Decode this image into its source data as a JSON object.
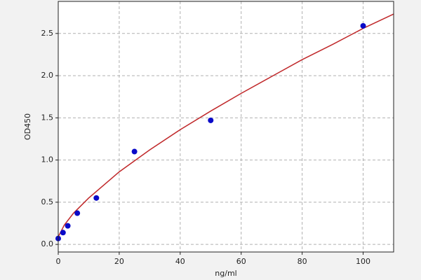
{
  "chart_data": {
    "type": "scatter",
    "x_label": "ng/ml",
    "y_label": "OD450",
    "xlim": [
      0,
      110
    ],
    "ylim": [
      -0.09,
      2.88
    ],
    "xticks": [
      0,
      20,
      40,
      60,
      80,
      100
    ],
    "yticks": [
      {
        "value": 0,
        "label": "0.0"
      },
      0.5,
      {
        "value": 1,
        "label": "1.0"
      },
      1.5,
      {
        "value": 2,
        "label": "2.0"
      },
      2.5
    ],
    "grid": true,
    "series": [
      {
        "type": "line",
        "color": "#c0282a",
        "x": [
          0,
          2,
          5,
          10,
          20,
          30,
          40,
          50,
          60,
          70,
          80,
          90,
          100,
          110
        ],
        "values": [
          0.09,
          0.23,
          0.37,
          0.55,
          0.86,
          1.12,
          1.36,
          1.58,
          1.79,
          1.99,
          2.19,
          2.37,
          2.56,
          2.73
        ]
      },
      {
        "type": "scatter",
        "color": "#0a0ac8",
        "x": [
          0,
          1.5625,
          3.125,
          6.25,
          12.5,
          25,
          50,
          100
        ],
        "values": [
          0.07,
          0.14,
          0.22,
          0.37,
          0.55,
          1.1,
          1.47,
          2.59
        ]
      }
    ]
  }
}
